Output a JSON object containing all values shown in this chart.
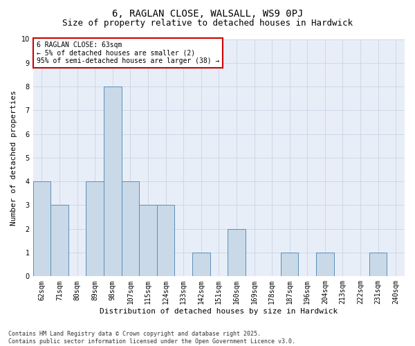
{
  "title": "6, RAGLAN CLOSE, WALSALL, WS9 0PJ",
  "subtitle": "Size of property relative to detached houses in Hardwick",
  "xlabel": "Distribution of detached houses by size in Hardwick",
  "ylabel": "Number of detached properties",
  "categories": [
    "62sqm",
    "71sqm",
    "80sqm",
    "89sqm",
    "98sqm",
    "107sqm",
    "115sqm",
    "124sqm",
    "133sqm",
    "142sqm",
    "151sqm",
    "160sqm",
    "169sqm",
    "178sqm",
    "187sqm",
    "196sqm",
    "204sqm",
    "213sqm",
    "222sqm",
    "231sqm",
    "240sqm"
  ],
  "values": [
    4,
    3,
    0,
    4,
    8,
    4,
    3,
    3,
    0,
    1,
    0,
    2,
    0,
    0,
    1,
    0,
    1,
    0,
    0,
    1,
    0
  ],
  "bar_color": "#c9d9e8",
  "bar_edge_color": "#5b8db8",
  "annotation_box_color": "#cc0000",
  "annotation_text": "6 RAGLAN CLOSE: 63sqm\n← 5% of detached houses are smaller (2)\n95% of semi-detached houses are larger (38) →",
  "ylim": [
    0,
    10
  ],
  "yticks": [
    0,
    1,
    2,
    3,
    4,
    5,
    6,
    7,
    8,
    9,
    10
  ],
  "grid_color": "#c8d4e4",
  "bg_color": "#e8eef8",
  "footer": "Contains HM Land Registry data © Crown copyright and database right 2025.\nContains public sector information licensed under the Open Government Licence v3.0.",
  "title_fontsize": 10,
  "subtitle_fontsize": 9,
  "annotation_fontsize": 7,
  "tick_fontsize": 7,
  "xlabel_fontsize": 8,
  "ylabel_fontsize": 8,
  "footer_fontsize": 6
}
